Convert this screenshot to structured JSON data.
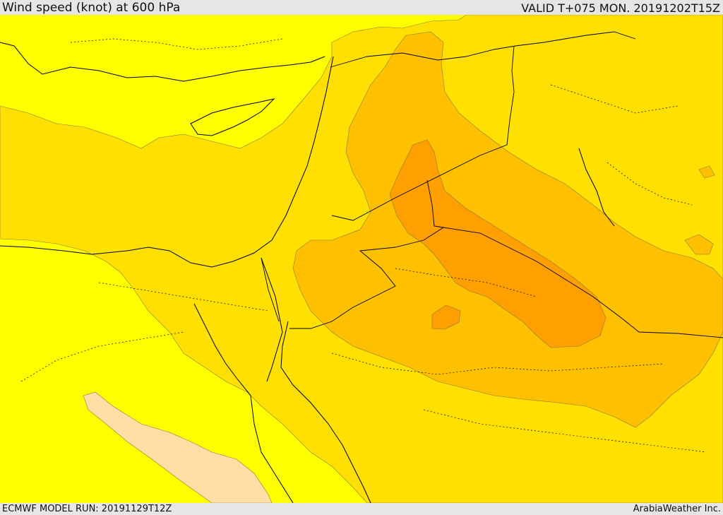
{
  "header": {
    "title": "Wind speed (knot) at 600 hPa",
    "valid": "VALID T+075 MON. 20191202T15Z"
  },
  "footer": {
    "model_run": "ECMWF MODEL RUN: 20191129T12Z",
    "credit": "ArabiaWeather Inc."
  },
  "map": {
    "variable": "wind-speed",
    "pressure_level_hpa": 600,
    "colors": {
      "band_1": "#ffff00",
      "band_2": "#ffe000",
      "band_3": "#ffc000",
      "band_4": "#ff9f00",
      "band_light": "#ffdfa5",
      "border": "#000000",
      "contour": "#7a6a2a"
    }
  }
}
